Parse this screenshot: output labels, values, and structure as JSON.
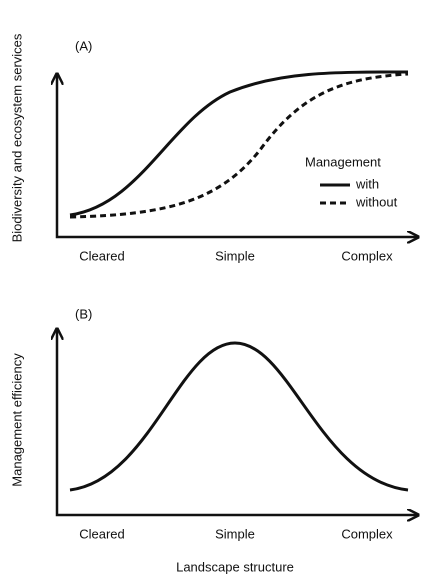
{
  "panels": [
    {
      "label": "(A)",
      "y_label": "Biodiversity and ecosystem services",
      "categories": [
        "Cleared",
        "Simple",
        "Complex"
      ],
      "legend": {
        "title": "Management",
        "entries": [
          "with",
          "without"
        ]
      }
    },
    {
      "label": "(B)",
      "y_label": "Management efficiency",
      "categories": [
        "Cleared",
        "Simple",
        "Complex"
      ]
    }
  ],
  "x_label": "Landscape structure"
}
